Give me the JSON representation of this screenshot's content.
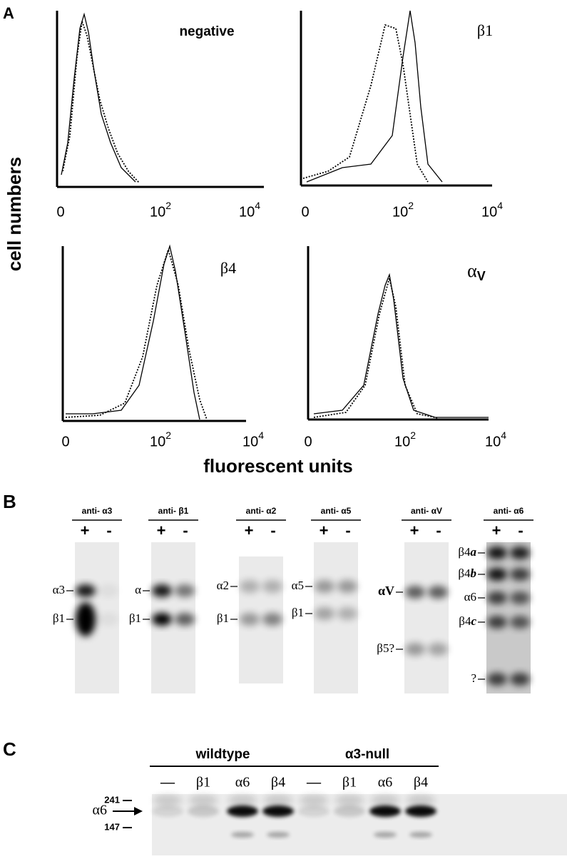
{
  "panel_a": {
    "label": "A",
    "y_axis_label": "cell numbers",
    "x_axis_label": "fluorescent units",
    "ticks": [
      {
        "base": "0"
      },
      {
        "base": "10",
        "exp": "2"
      },
      {
        "base": "10",
        "exp": "4"
      }
    ],
    "plots": [
      {
        "title": "negative"
      },
      {
        "title": "β1"
      },
      {
        "title": "β4"
      },
      {
        "title": "α",
        "title_sub": "V"
      }
    ]
  },
  "panel_b": {
    "label": "B",
    "blots": [
      {
        "antibody": "anti- α3",
        "lanes": [
          "+",
          "-"
        ],
        "bands": [
          "α3",
          "β1"
        ]
      },
      {
        "antibody": "anti- β1",
        "lanes": [
          "+",
          "-"
        ],
        "bands": [
          "α",
          "β1"
        ]
      },
      {
        "antibody": "anti- α2",
        "lanes": [
          "+",
          "-"
        ],
        "bands": [
          "α2",
          "β1"
        ]
      },
      {
        "antibody": "anti- α5",
        "lanes": [
          "+",
          "-"
        ],
        "bands": [
          "α5",
          "β1"
        ]
      },
      {
        "antibody": "anti- αV",
        "lanes": [
          "+",
          "-"
        ],
        "bands": [
          "αV",
          "β5?"
        ]
      },
      {
        "antibody": "anti- α6",
        "lanes": [
          "+",
          "-"
        ],
        "bands": [
          "β4",
          "β4",
          "α6",
          "β4",
          "?"
        ],
        "band_suffixes": [
          "a",
          "b",
          "c"
        ]
      }
    ]
  },
  "panel_c": {
    "label": "C",
    "groups": [
      {
        "name": "wildtype",
        "lanes": [
          "—",
          "β1",
          "α6",
          "β4"
        ]
      },
      {
        "name": "α3-null",
        "lanes": [
          "—",
          "β1",
          "α6",
          "β4"
        ]
      }
    ],
    "markers": [
      "241",
      "147"
    ],
    "arrow_label": "α6"
  }
}
